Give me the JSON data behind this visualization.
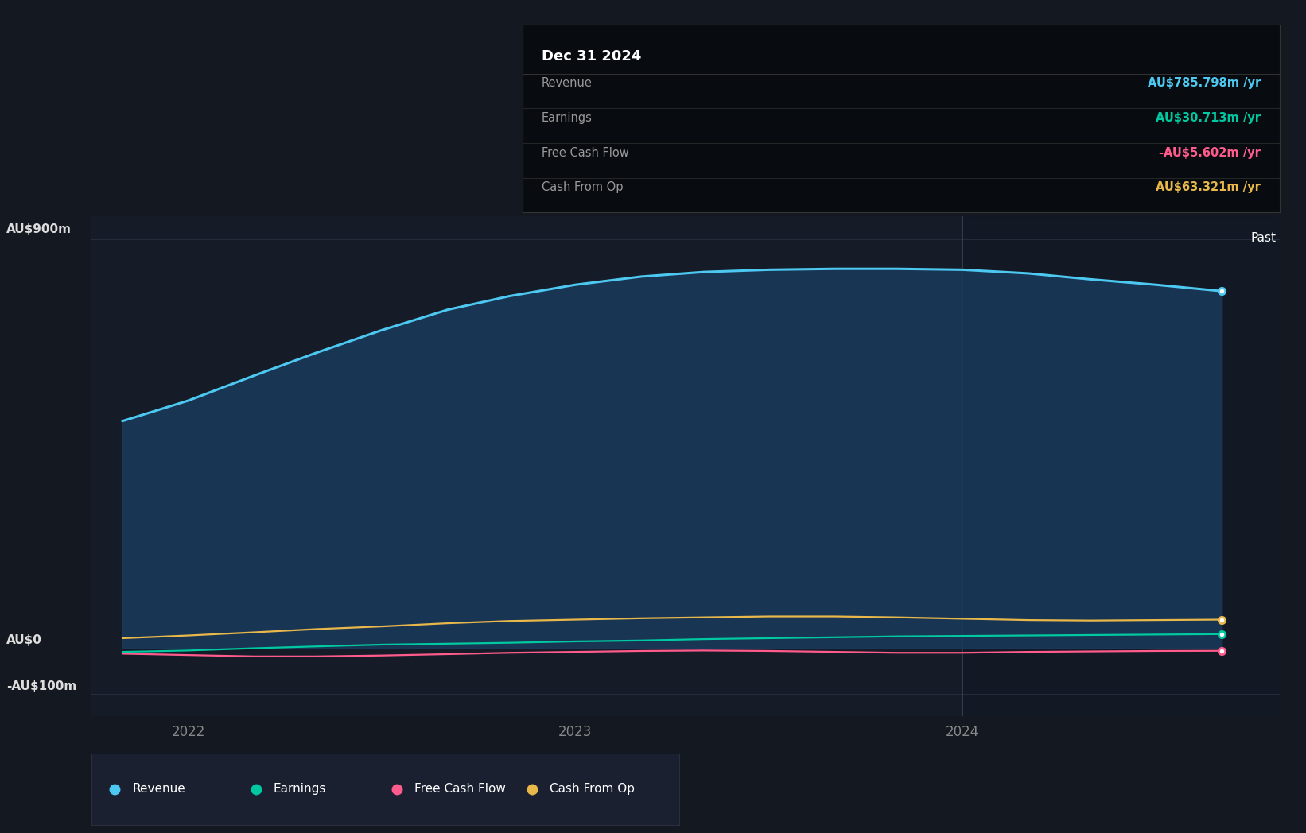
{
  "bg_color": "#141820",
  "chart_bg_color": "#151c28",
  "panel_bg_left": "#141820",
  "ylabel_900": "AU$900m",
  "ylabel_0": "AU$0",
  "ylabel_neg100": "-AU$100m",
  "x_ticks": [
    2022,
    2023,
    2024
  ],
  "divider_x": 2024.0,
  "past_label": "Past",
  "series": {
    "revenue": {
      "label": "Revenue",
      "color": "#4DC8F0",
      "fill_color": "#1a3a5c",
      "fill_alpha": 0.85,
      "x": [
        2021.83,
        2022.0,
        2022.17,
        2022.33,
        2022.5,
        2022.67,
        2022.83,
        2023.0,
        2023.17,
        2023.33,
        2023.5,
        2023.67,
        2023.83,
        2024.0,
        2024.17,
        2024.33,
        2024.5,
        2024.67
      ],
      "y": [
        500,
        545,
        600,
        650,
        700,
        745,
        775,
        800,
        818,
        828,
        833,
        835,
        835,
        833,
        825,
        812,
        800,
        786
      ]
    },
    "earnings": {
      "label": "Earnings",
      "color": "#00C8A0",
      "x": [
        2021.83,
        2022.0,
        2022.17,
        2022.33,
        2022.5,
        2022.67,
        2022.83,
        2023.0,
        2023.17,
        2023.33,
        2023.5,
        2023.67,
        2023.83,
        2024.0,
        2024.17,
        2024.33,
        2024.5,
        2024.67
      ],
      "y": [
        -8,
        -5,
        0,
        4,
        8,
        10,
        12,
        15,
        17,
        20,
        22,
        24,
        26,
        27,
        28,
        29,
        30,
        31
      ]
    },
    "free_cash_flow": {
      "label": "Free Cash Flow",
      "color": "#FF5C8D",
      "x": [
        2021.83,
        2022.0,
        2022.17,
        2022.33,
        2022.5,
        2022.67,
        2022.83,
        2023.0,
        2023.17,
        2023.33,
        2023.5,
        2023.67,
        2023.83,
        2024.0,
        2024.17,
        2024.33,
        2024.5,
        2024.67
      ],
      "y": [
        -12,
        -15,
        -18,
        -18,
        -16,
        -13,
        -10,
        -8,
        -6,
        -5,
        -6,
        -8,
        -10,
        -10,
        -8,
        -7,
        -6,
        -5.6
      ]
    },
    "cash_from_op": {
      "label": "Cash From Op",
      "color": "#E8B84B",
      "x": [
        2021.83,
        2022.0,
        2022.17,
        2022.33,
        2022.5,
        2022.67,
        2022.83,
        2023.0,
        2023.17,
        2023.33,
        2023.5,
        2023.67,
        2023.83,
        2024.0,
        2024.17,
        2024.33,
        2024.5,
        2024.67
      ],
      "y": [
        22,
        28,
        35,
        42,
        48,
        55,
        60,
        63,
        66,
        68,
        70,
        70,
        68,
        65,
        62,
        61,
        62,
        63
      ]
    }
  },
  "tooltip": {
    "bg_color": "#080c10",
    "border_color": "#2a2a2a",
    "title": "Dec 31 2024",
    "title_color": "#ffffff",
    "rows": [
      {
        "label": "Revenue",
        "value": "AU$785.798m /yr",
        "value_color": "#4DC8F0"
      },
      {
        "label": "Earnings",
        "value": "AU$30.713m /yr",
        "value_color": "#00C8A0"
      },
      {
        "label": "Free Cash Flow",
        "value": "-AU$5.602m /yr",
        "value_color": "#FF5C8D"
      },
      {
        "label": "Cash From Op",
        "value": "AU$63.321m /yr",
        "value_color": "#E8B84B"
      }
    ],
    "label_color": "#999999"
  },
  "legend": [
    {
      "label": "Revenue",
      "color": "#4DC8F0"
    },
    {
      "label": "Earnings",
      "color": "#00C8A0"
    },
    {
      "label": "Free Cash Flow",
      "color": "#FF5C8D"
    },
    {
      "label": "Cash From Op",
      "color": "#E8B84B"
    }
  ],
  "ylim": [
    -150,
    950
  ],
  "xlim": [
    2021.75,
    2024.82
  ],
  "grid_color": "#2a3545",
  "divider_color": "#3a4a5a",
  "axis_label_color": "#dddddd",
  "tick_color": "#888888"
}
